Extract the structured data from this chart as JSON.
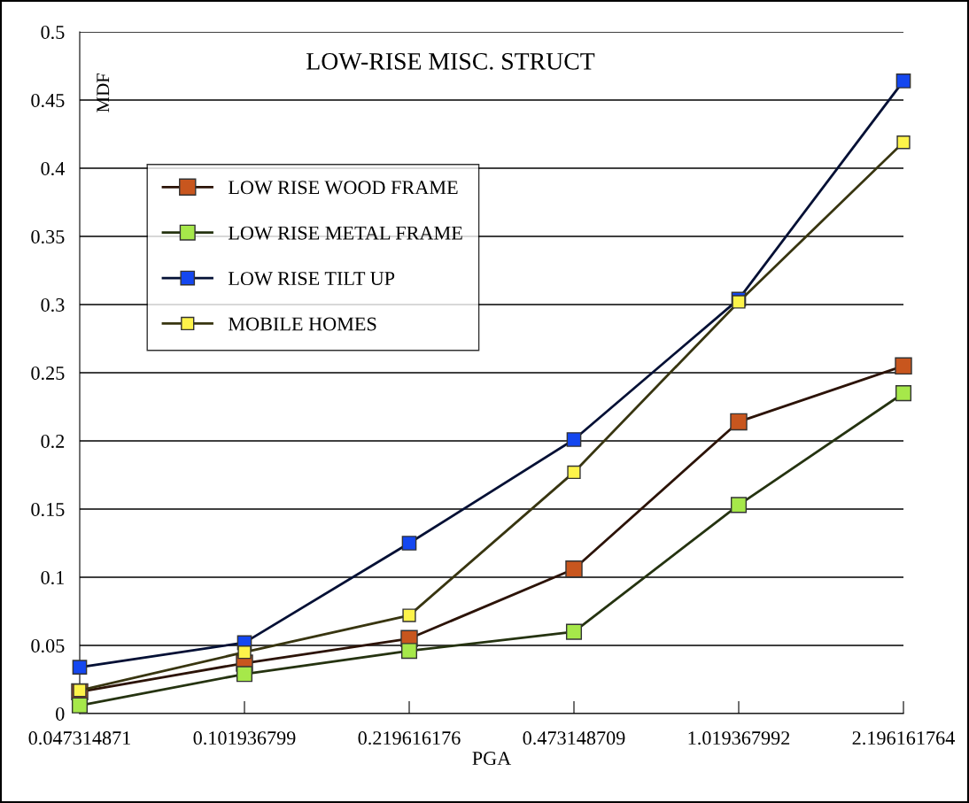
{
  "chart_data": {
    "type": "line",
    "title": "LOW-RISE MISC. STRUCT",
    "xlabel": "PGA",
    "ylabel": "MDF",
    "categories": [
      "0.047314871",
      "0.101936799",
      "0.219616176",
      "0.473148709",
      "1.019367992",
      "2.196161764"
    ],
    "series": [
      {
        "name": "LOW RISE WOOD FRAME",
        "color": "#c8561e",
        "values": [
          0.016,
          0.037,
          0.055,
          0.106,
          0.214,
          0.255
        ]
      },
      {
        "name": "LOW RISE METAL FRAME",
        "color": "#a6e84a",
        "values": [
          0.006,
          0.029,
          0.046,
          0.06,
          0.153,
          0.235
        ]
      },
      {
        "name": "LOW RISE TILT UP",
        "color": "#1447f0",
        "values": [
          0.034,
          0.052,
          0.125,
          0.201,
          0.304,
          0.464
        ]
      },
      {
        "name": "MOBILE HOMES",
        "color": "#fdf34a",
        "values": [
          0.017,
          0.045,
          0.072,
          0.177,
          0.302,
          0.419
        ]
      }
    ],
    "ylim": [
      0,
      0.5
    ],
    "yticks": [
      0,
      0.05,
      0.1,
      0.15,
      0.2,
      0.25,
      0.3,
      0.35,
      0.4,
      0.45,
      0.5
    ],
    "grid": "y",
    "legend": "top left",
    "marker": "square",
    "line_style": "solid"
  }
}
